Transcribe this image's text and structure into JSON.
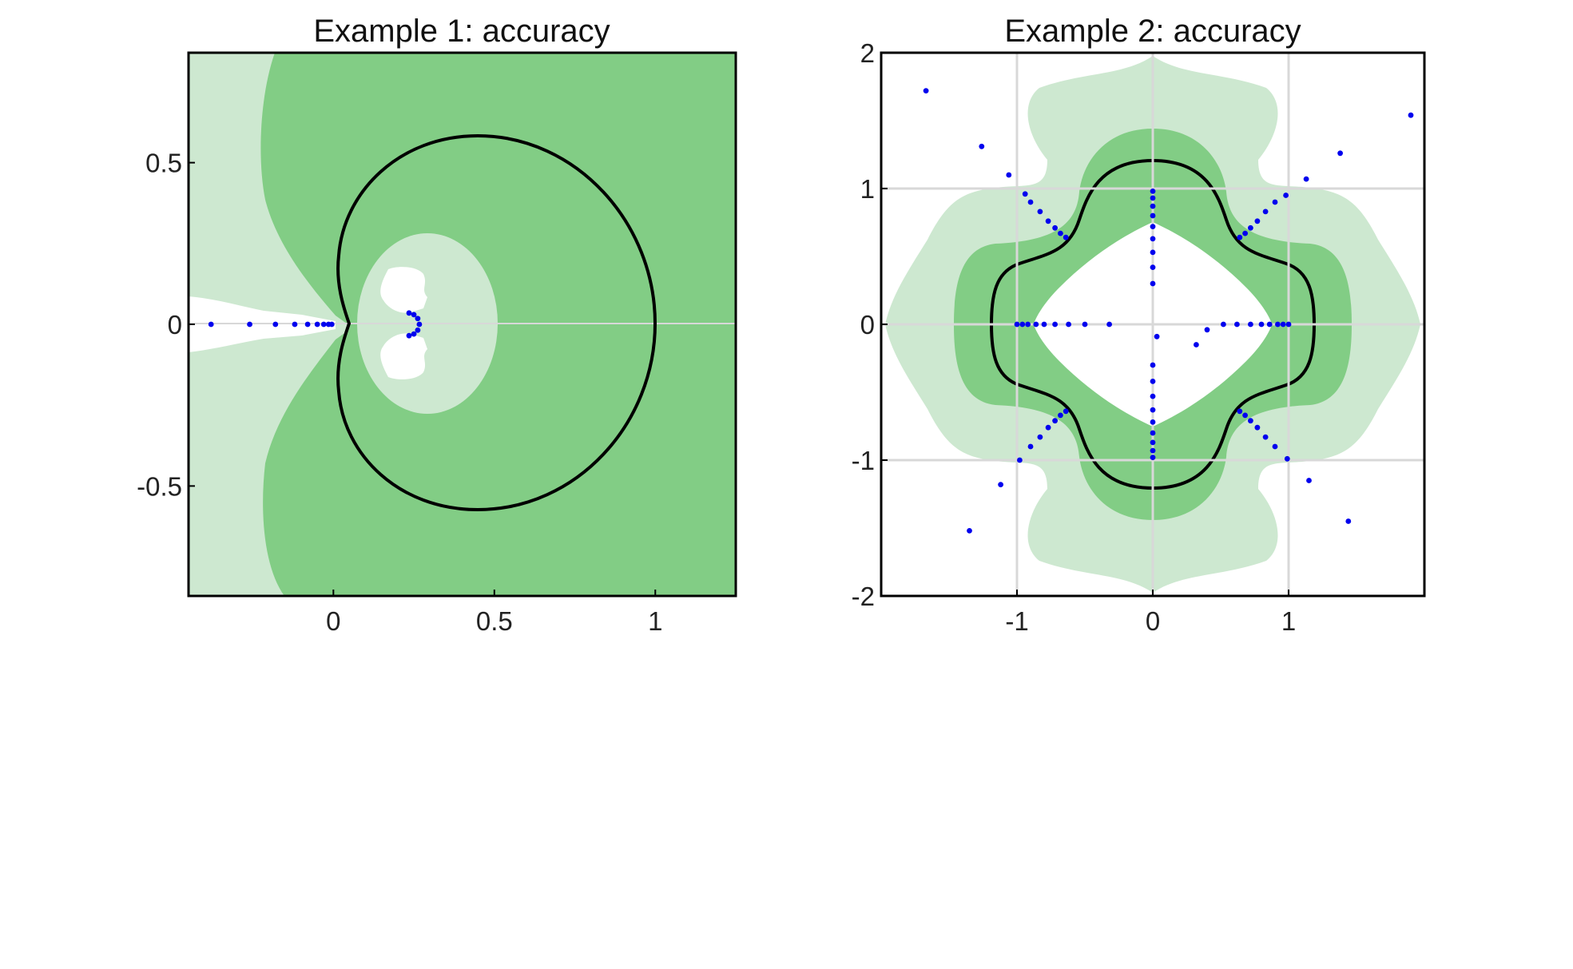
{
  "colors": {
    "dark_green": "#82cd85",
    "light_green": "#cde8d0",
    "pole_blue": "#0000ee",
    "contour": "#000000",
    "grid": "#d8d8d8"
  },
  "chart_data": [
    {
      "type": "scatter",
      "title": "Example 1: accuracy",
      "xlim": [
        -0.45,
        1.25
      ],
      "ylim": [
        -0.84,
        0.84
      ],
      "xticks": [
        0,
        0.5,
        1
      ],
      "xtick_labels": [
        "0",
        "0.5",
        "1"
      ],
      "yticks": [
        0.5,
        0,
        -0.5
      ],
      "ytick_labels": [
        "0.5",
        "0",
        "-0.5"
      ],
      "grid": false,
      "regions": "accuracy shading: dark green covers most of the plane, light green band on the left and around an interior hole, white slit along the negative real axis and white hole near (0.25, 0)",
      "contour": {
        "description": "cardioid-like closed curve",
        "x_range": [
          0.05,
          1.0
        ],
        "y_range": [
          -0.58,
          0.58
        ]
      },
      "poles": [
        [
          -0.38,
          0
        ],
        [
          -0.26,
          0
        ],
        [
          -0.18,
          0
        ],
        [
          -0.12,
          0
        ],
        [
          -0.08,
          0
        ],
        [
          -0.05,
          0
        ],
        [
          -0.03,
          0
        ],
        [
          -0.015,
          0
        ],
        [
          -0.005,
          0
        ],
        [
          0.235,
          0.035
        ],
        [
          0.25,
          0.03
        ],
        [
          0.262,
          0.018
        ],
        [
          0.267,
          0.0
        ],
        [
          0.262,
          -0.018
        ],
        [
          0.25,
          -0.03
        ],
        [
          0.235,
          -0.035
        ]
      ]
    },
    {
      "type": "scatter",
      "title": "Example 2: accuracy",
      "xlim": [
        -2,
        2
      ],
      "ylim": [
        -2,
        2
      ],
      "xticks": [
        -1,
        0,
        1
      ],
      "xtick_labels": [
        "-1",
        "0",
        "1"
      ],
      "yticks": [
        2,
        1,
        0,
        -1,
        -2
      ],
      "ytick_labels": [
        "2",
        "1",
        "0",
        "-1",
        "-2"
      ],
      "grid": true,
      "regions": "nested four-lobed accuracy regions: outer light green flower, dark green band around the contour, white interior",
      "contour": {
        "description": "four-lobed closed curve",
        "x_range": [
          -1.2,
          1.2
        ],
        "y_range": [
          -1.2,
          1.2
        ]
      },
      "poles": [
        [
          0,
          0.98
        ],
        [
          0,
          0.93
        ],
        [
          0,
          0.87
        ],
        [
          0,
          0.8
        ],
        [
          0,
          0.72
        ],
        [
          0,
          0.63
        ],
        [
          0,
          0.53
        ],
        [
          0,
          0.42
        ],
        [
          0,
          0.3
        ],
        [
          0,
          -0.98
        ],
        [
          0,
          -0.93
        ],
        [
          0,
          -0.87
        ],
        [
          0,
          -0.8
        ],
        [
          0,
          -0.72
        ],
        [
          0,
          -0.63
        ],
        [
          0,
          -0.53
        ],
        [
          0,
          -0.42
        ],
        [
          0,
          -0.3
        ],
        [
          -1.0,
          0
        ],
        [
          -0.96,
          0
        ],
        [
          -0.92,
          0
        ],
        [
          -0.86,
          0
        ],
        [
          -0.8,
          0
        ],
        [
          -0.72,
          0
        ],
        [
          -0.62,
          0
        ],
        [
          -0.5,
          0
        ],
        [
          -0.32,
          0
        ],
        [
          1.0,
          0
        ],
        [
          0.96,
          0
        ],
        [
          0.92,
          0
        ],
        [
          0.86,
          0
        ],
        [
          0.8,
          0
        ],
        [
          0.72,
          0
        ],
        [
          0.62,
          0
        ],
        [
          0.52,
          0
        ],
        [
          0.03,
          -0.09
        ],
        [
          0.4,
          -0.04
        ],
        [
          0.32,
          -0.15
        ],
        [
          -0.64,
          0.64
        ],
        [
          -0.68,
          0.67
        ],
        [
          -0.72,
          0.71
        ],
        [
          -0.77,
          0.76
        ],
        [
          -0.83,
          0.83
        ],
        [
          -0.9,
          0.9
        ],
        [
          -0.94,
          0.96
        ],
        [
          0.64,
          0.64
        ],
        [
          0.68,
          0.67
        ],
        [
          0.72,
          0.71
        ],
        [
          0.77,
          0.76
        ],
        [
          0.83,
          0.83
        ],
        [
          0.9,
          0.9
        ],
        [
          0.98,
          0.95
        ],
        [
          -0.64,
          -0.64
        ],
        [
          -0.68,
          -0.67
        ],
        [
          -0.72,
          -0.71
        ],
        [
          -0.77,
          -0.76
        ],
        [
          -0.83,
          -0.83
        ],
        [
          -0.9,
          -0.9
        ],
        [
          -0.98,
          -1.0
        ],
        [
          0.64,
          -0.64
        ],
        [
          0.68,
          -0.67
        ],
        [
          0.72,
          -0.71
        ],
        [
          0.77,
          -0.76
        ],
        [
          0.83,
          -0.83
        ],
        [
          0.9,
          -0.9
        ],
        [
          0.99,
          -0.99
        ],
        [
          -1.67,
          1.72
        ],
        [
          -1.26,
          1.31
        ],
        [
          -1.06,
          1.1
        ],
        [
          1.9,
          1.54
        ],
        [
          1.38,
          1.26
        ],
        [
          1.13,
          1.07
        ],
        [
          -1.35,
          -1.52
        ],
        [
          -1.12,
          -1.18
        ],
        [
          1.44,
          -1.45
        ],
        [
          1.15,
          -1.15
        ]
      ]
    }
  ]
}
